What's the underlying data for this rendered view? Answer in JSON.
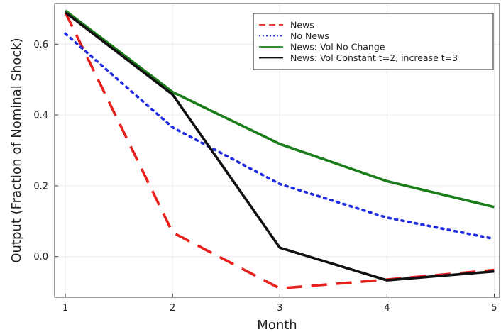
{
  "chart_data": {
    "type": "line",
    "xlabel": "Month",
    "ylabel": "Output (Fraction of Nominal Shock)",
    "xlim": [
      0.9,
      5.05
    ],
    "ylim": [
      -0.115,
      0.715
    ],
    "x_ticks": [
      1,
      2,
      3,
      4,
      5
    ],
    "y_ticks": [
      0.0,
      0.2,
      0.4,
      0.6
    ],
    "y_tick_labels": [
      "0.0",
      "0.2",
      "0.4",
      "0.6"
    ],
    "grid": true,
    "legend_position": "top-right",
    "x": [
      1,
      2,
      3,
      4,
      5
    ],
    "series": [
      {
        "name": "News",
        "color": "#e8201c",
        "dash": "dashed",
        "values": [
          0.69,
          0.068,
          -0.09,
          -0.065,
          -0.038
        ]
      },
      {
        "name": "No News",
        "color": "#1f2be0",
        "dash": "dotted",
        "values": [
          0.63,
          0.365,
          0.205,
          0.11,
          0.05
        ]
      },
      {
        "name": "News: Vol No Change",
        "color": "#1a7d1a",
        "dash": "solid",
        "values": [
          0.695,
          0.465,
          0.318,
          0.213,
          0.14
        ]
      },
      {
        "name": "News: Vol Constant t=2, increase t=3",
        "color": "#111111",
        "dash": "solid",
        "values": [
          0.69,
          0.458,
          0.025,
          -0.067,
          -0.042
        ]
      }
    ]
  }
}
